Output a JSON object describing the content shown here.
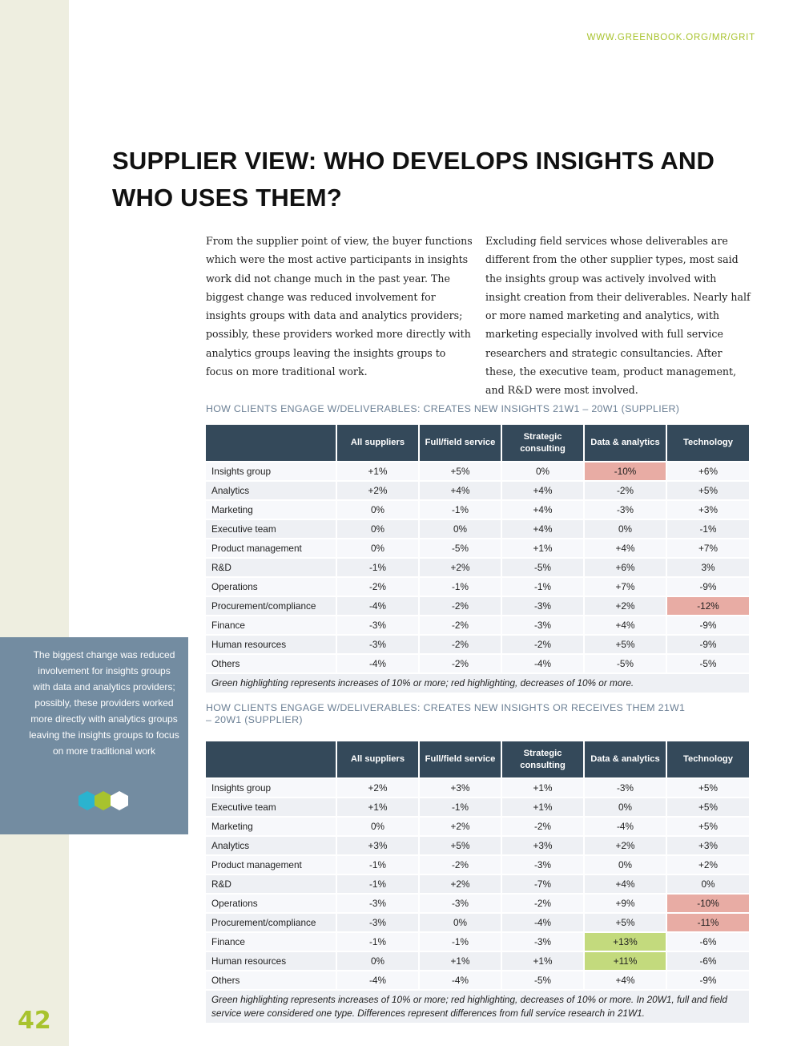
{
  "header": {
    "url": "WWW.GREENBOOK.ORG/MR/GRIT"
  },
  "page_number": "42",
  "title": "SUPPLIER VIEW: WHO DEVELOPS INSIGHTS AND WHO USES THEM?",
  "body": {
    "col1": "From the supplier point of view, the buyer functions which were the most active participants in insights work did not change much in the past year. The biggest change was reduced involvement for insights groups with data and analytics providers; possibly, these providers worked more directly with analytics groups leaving the insights groups to focus on more traditional work.",
    "col2": "Excluding field services whose deliverables are different from the other supplier types, most said the insights group was actively involved with insight creation from their deliverables. Nearly half or more named marketing and analytics, with marketing especially involved with full service researchers and strategic consultancies. After these, the executive team, product management, and R&D were most involved."
  },
  "callout": {
    "text": "The biggest change was reduced involvement for insights groups with data and analytics providers; possibly, these providers worked more directly with analytics groups leaving the insights groups to focus on more traditional work",
    "bg_color": "#738ca1",
    "hex_icons": [
      "hexagon-teal-icon",
      "hexagon-green-icon",
      "hexagon-white-icon"
    ]
  },
  "highlight_colors": {
    "red": "#e8aca4",
    "green": "#c3da7d",
    "header": "#34495a"
  },
  "tables": [
    {
      "caption": "HOW CLIENTS ENGAGE W/DELIVERABLES: CREATES NEW INSIGHTS 21W1 – 20W1 (SUPPLIER)",
      "headers": [
        "",
        "All suppliers",
        "Full/field service",
        "Strategic consulting",
        "Data & analytics",
        "Technology"
      ],
      "rows": [
        {
          "label": "Insights group",
          "cells": [
            {
              "v": "+1%"
            },
            {
              "v": "+5%"
            },
            {
              "v": "0%"
            },
            {
              "v": "-10%",
              "hl": "red"
            },
            {
              "v": "+6%"
            }
          ]
        },
        {
          "label": "Analytics",
          "cells": [
            {
              "v": "+2%"
            },
            {
              "v": "+4%"
            },
            {
              "v": "+4%"
            },
            {
              "v": "-2%"
            },
            {
              "v": "+5%"
            }
          ]
        },
        {
          "label": "Marketing",
          "cells": [
            {
              "v": "0%"
            },
            {
              "v": "-1%"
            },
            {
              "v": "+4%"
            },
            {
              "v": "-3%"
            },
            {
              "v": "+3%"
            }
          ]
        },
        {
          "label": "Executive team",
          "cells": [
            {
              "v": "0%"
            },
            {
              "v": "0%"
            },
            {
              "v": "+4%"
            },
            {
              "v": "0%"
            },
            {
              "v": "-1%"
            }
          ]
        },
        {
          "label": "Product management",
          "cells": [
            {
              "v": "0%"
            },
            {
              "v": "-5%"
            },
            {
              "v": "+1%"
            },
            {
              "v": "+4%"
            },
            {
              "v": "+7%"
            }
          ]
        },
        {
          "label": "R&D",
          "cells": [
            {
              "v": "-1%"
            },
            {
              "v": "+2%"
            },
            {
              "v": "-5%"
            },
            {
              "v": "+6%"
            },
            {
              "v": "3%"
            }
          ]
        },
        {
          "label": "Operations",
          "cells": [
            {
              "v": "-2%"
            },
            {
              "v": "-1%"
            },
            {
              "v": "-1%"
            },
            {
              "v": "+7%"
            },
            {
              "v": "-9%"
            }
          ]
        },
        {
          "label": "Procurement/compliance",
          "cells": [
            {
              "v": "-4%"
            },
            {
              "v": "-2%"
            },
            {
              "v": "-3%"
            },
            {
              "v": "+2%"
            },
            {
              "v": "-12%",
              "hl": "red"
            }
          ]
        },
        {
          "label": "Finance",
          "cells": [
            {
              "v": "-3%"
            },
            {
              "v": "-2%"
            },
            {
              "v": "-3%"
            },
            {
              "v": "+4%"
            },
            {
              "v": "-9%"
            }
          ]
        },
        {
          "label": "Human resources",
          "cells": [
            {
              "v": "-3%"
            },
            {
              "v": "-2%"
            },
            {
              "v": "-2%"
            },
            {
              "v": "+5%"
            },
            {
              "v": "-9%"
            }
          ]
        },
        {
          "label": "Others",
          "cells": [
            {
              "v": "-4%"
            },
            {
              "v": "-2%"
            },
            {
              "v": "-4%"
            },
            {
              "v": "-5%"
            },
            {
              "v": "-5%"
            }
          ]
        }
      ],
      "note": "Green highlighting represents increases of 10% or more; red highlighting, decreases of 10% or more."
    },
    {
      "caption": "HOW CLIENTS ENGAGE W/DELIVERABLES: CREATES NEW INSIGHTS OR RECEIVES THEM 21W1 – 20W1 (SUPPLIER)",
      "headers": [
        "",
        "All suppliers",
        "Full/field service",
        "Strategic consulting",
        "Data & analytics",
        "Technology"
      ],
      "rows": [
        {
          "label": "Insights group",
          "cells": [
            {
              "v": "+2%"
            },
            {
              "v": "+3%"
            },
            {
              "v": "+1%"
            },
            {
              "v": "-3%"
            },
            {
              "v": "+5%"
            }
          ]
        },
        {
          "label": "Executive team",
          "cells": [
            {
              "v": "+1%"
            },
            {
              "v": "-1%"
            },
            {
              "v": "+1%"
            },
            {
              "v": "0%"
            },
            {
              "v": "+5%"
            }
          ]
        },
        {
          "label": "Marketing",
          "cells": [
            {
              "v": "0%"
            },
            {
              "v": "+2%"
            },
            {
              "v": "-2%"
            },
            {
              "v": "-4%"
            },
            {
              "v": "+5%"
            }
          ]
        },
        {
          "label": "Analytics",
          "cells": [
            {
              "v": "+3%"
            },
            {
              "v": "+5%"
            },
            {
              "v": "+3%"
            },
            {
              "v": "+2%"
            },
            {
              "v": "+3%"
            }
          ]
        },
        {
          "label": "Product management",
          "cells": [
            {
              "v": "-1%"
            },
            {
              "v": "-2%"
            },
            {
              "v": "-3%"
            },
            {
              "v": "0%"
            },
            {
              "v": "+2%"
            }
          ]
        },
        {
          "label": "R&D",
          "cells": [
            {
              "v": "-1%"
            },
            {
              "v": "+2%"
            },
            {
              "v": "-7%"
            },
            {
              "v": "+4%"
            },
            {
              "v": "0%"
            }
          ]
        },
        {
          "label": "Operations",
          "cells": [
            {
              "v": "-3%"
            },
            {
              "v": "-3%"
            },
            {
              "v": "-2%"
            },
            {
              "v": "+9%"
            },
            {
              "v": "-10%",
              "hl": "red"
            }
          ]
        },
        {
          "label": "Procurement/compliance",
          "cells": [
            {
              "v": "-3%"
            },
            {
              "v": "0%"
            },
            {
              "v": "-4%"
            },
            {
              "v": "+5%"
            },
            {
              "v": "-11%",
              "hl": "red"
            }
          ]
        },
        {
          "label": "Finance",
          "cells": [
            {
              "v": "-1%"
            },
            {
              "v": "-1%"
            },
            {
              "v": "-3%"
            },
            {
              "v": "+13%",
              "hl": "green"
            },
            {
              "v": "-6%"
            }
          ]
        },
        {
          "label": "Human resources",
          "cells": [
            {
              "v": "0%"
            },
            {
              "v": "+1%"
            },
            {
              "v": "+1%"
            },
            {
              "v": "+11%",
              "hl": "green"
            },
            {
              "v": "-6%"
            }
          ]
        },
        {
          "label": "Others",
          "cells": [
            {
              "v": "-4%"
            },
            {
              "v": "-4%"
            },
            {
              "v": "-5%"
            },
            {
              "v": "+4%"
            },
            {
              "v": "-9%"
            }
          ]
        }
      ],
      "note": "Green highlighting represents increases of 10% or more; red highlighting, decreases of 10% or more. In 20W1, full and field service were considered one type. Differences represent differences from full service research in 21W1."
    }
  ]
}
